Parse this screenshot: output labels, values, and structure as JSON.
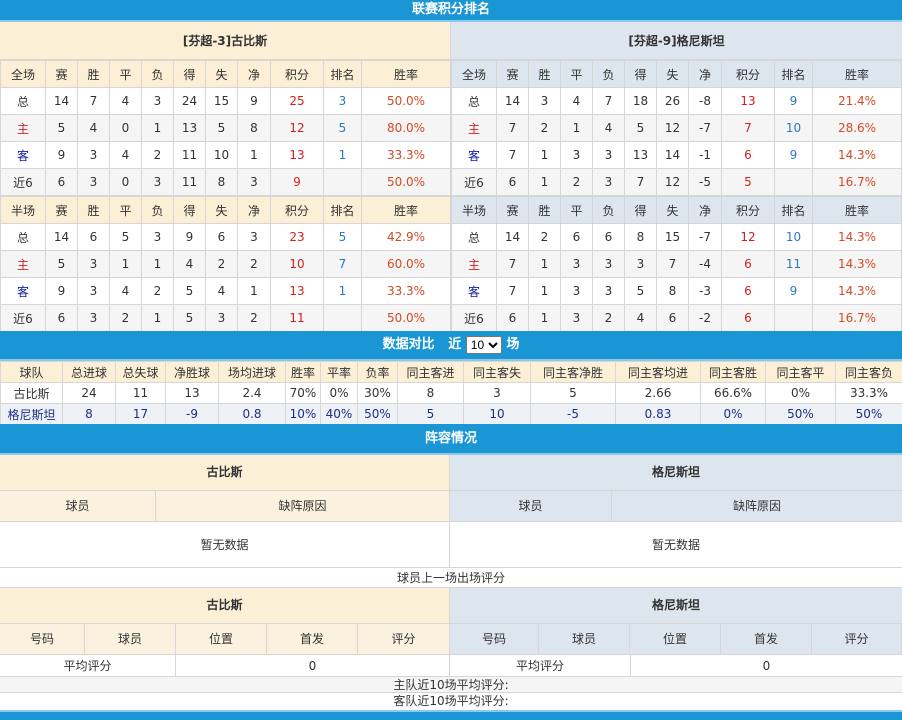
{
  "standings": {
    "title": "联赛积分排名",
    "cols": [
      "赛",
      "胜",
      "平",
      "负",
      "得",
      "失",
      "净",
      "积分",
      "排名",
      "胜率"
    ],
    "home": {
      "name": "[芬超-3]古比斯",
      "full": {
        "label": "全场",
        "rows": [
          [
            "总",
            "14",
            "7",
            "4",
            "3",
            "24",
            "15",
            "9",
            "25",
            "3",
            "50.0%"
          ],
          [
            "主",
            "5",
            "4",
            "0",
            "1",
            "13",
            "5",
            "8",
            "12",
            "5",
            "80.0%"
          ],
          [
            "客",
            "9",
            "3",
            "4",
            "2",
            "11",
            "10",
            "1",
            "13",
            "1",
            "33.3%"
          ],
          [
            "近6",
            "6",
            "3",
            "0",
            "3",
            "11",
            "8",
            "3",
            "9",
            "",
            "50.0%"
          ]
        ]
      },
      "half": {
        "label": "半场",
        "rows": [
          [
            "总",
            "14",
            "6",
            "5",
            "3",
            "9",
            "6",
            "3",
            "23",
            "5",
            "42.9%"
          ],
          [
            "主",
            "5",
            "3",
            "1",
            "1",
            "4",
            "2",
            "2",
            "10",
            "7",
            "60.0%"
          ],
          [
            "客",
            "9",
            "3",
            "4",
            "2",
            "5",
            "4",
            "1",
            "13",
            "1",
            "33.3%"
          ],
          [
            "近6",
            "6",
            "3",
            "2",
            "1",
            "5",
            "3",
            "2",
            "11",
            "",
            "50.0%"
          ]
        ]
      }
    },
    "away": {
      "name": "[芬超-9]格尼斯坦",
      "full": {
        "label": "全场",
        "rows": [
          [
            "总",
            "14",
            "3",
            "4",
            "7",
            "18",
            "26",
            "-8",
            "13",
            "9",
            "21.4%"
          ],
          [
            "主",
            "7",
            "2",
            "1",
            "4",
            "5",
            "12",
            "-7",
            "7",
            "10",
            "28.6%"
          ],
          [
            "客",
            "7",
            "1",
            "3",
            "3",
            "13",
            "14",
            "-1",
            "6",
            "9",
            "14.3%"
          ],
          [
            "近6",
            "6",
            "1",
            "2",
            "3",
            "7",
            "12",
            "-5",
            "5",
            "",
            "16.7%"
          ]
        ]
      },
      "half": {
        "label": "半场",
        "rows": [
          [
            "总",
            "14",
            "2",
            "6",
            "6",
            "8",
            "15",
            "-7",
            "12",
            "10",
            "14.3%"
          ],
          [
            "主",
            "7",
            "1",
            "3",
            "3",
            "3",
            "7",
            "-4",
            "6",
            "11",
            "14.3%"
          ],
          [
            "客",
            "7",
            "1",
            "3",
            "3",
            "5",
            "8",
            "-3",
            "6",
            "9",
            "14.3%"
          ],
          [
            "近6",
            "6",
            "1",
            "3",
            "2",
            "4",
            "6",
            "-2",
            "6",
            "",
            "16.7%"
          ]
        ]
      }
    }
  },
  "compare": {
    "title": "数据对比",
    "prefix": "近",
    "count": "10",
    "suffix": "场",
    "headers": [
      "球队",
      "总进球",
      "总失球",
      "净胜球",
      "场均进球",
      "胜率",
      "平率",
      "负率",
      "同主客进",
      "同主客失",
      "同主客净胜",
      "同主客均进",
      "同主客胜",
      "同主客平",
      "同主客负"
    ],
    "rows": [
      [
        "古比斯",
        "24",
        "11",
        "13",
        "2.4",
        "70%",
        "0%",
        "30%",
        "8",
        "3",
        "5",
        "2.66",
        "66.6%",
        "0%",
        "33.3%"
      ],
      [
        "格尼斯坦",
        "8",
        "17",
        "-9",
        "0.8",
        "10%",
        "40%",
        "50%",
        "5",
        "10",
        "-5",
        "0.83",
        "0%",
        "50%",
        "50%"
      ]
    ]
  },
  "lineup": {
    "title": "阵容情况",
    "home": "古比斯",
    "away": "格尼斯坦",
    "player": "球员",
    "reason": "缺阵原因",
    "empty": "暂无数据"
  },
  "ratings": {
    "title": "球员上一场出场评分",
    "home": "古比斯",
    "away": "格尼斯坦",
    "cols": [
      "号码",
      "球员",
      "位置",
      "首发",
      "评分"
    ],
    "avg_label": "平均评分",
    "home_avg": "0",
    "away_avg": "0",
    "home_recent": "主队近10场平均评分:",
    "away_recent": "客队近10场平均评分:"
  }
}
